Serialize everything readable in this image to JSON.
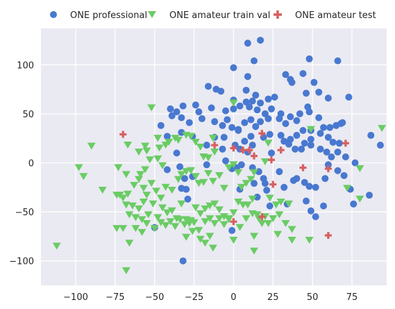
{
  "colors": {
    "plot_background": "#eaeaf2",
    "grid": "#ffffff",
    "professional": "#4878d0",
    "train_val": "#6acc64",
    "test": "#d65f5f"
  },
  "legend": {
    "position": "top, above plot",
    "items": [
      {
        "label": "ONE professional",
        "marker": "circle",
        "color": "#4878d0"
      },
      {
        "label": "ONE amateur train val",
        "marker": "triangle-down",
        "color": "#6acc64"
      },
      {
        "label": "ONE amateur test",
        "marker": "plus",
        "color": "#d65f5f"
      }
    ]
  },
  "chart_data": {
    "type": "scatter",
    "title": "",
    "xlabel": "",
    "ylabel": "",
    "xlim": [
      -122,
      97
    ],
    "ylim": [
      -125,
      137
    ],
    "grid": true,
    "x_ticks": [
      -100,
      -75,
      -50,
      -25,
      0,
      25,
      50,
      75
    ],
    "x_tick_labels": [
      "−100",
      "−75",
      "−50",
      "−25",
      "0",
      "25",
      "50",
      "75"
    ],
    "y_ticks": [
      -100,
      -50,
      0,
      50,
      100
    ],
    "y_tick_labels": [
      "−100",
      "−50",
      "0",
      "50",
      "100"
    ],
    "series": [
      {
        "name": "ONE professional",
        "marker": "circle",
        "points": [
          [
            9,
            122
          ],
          [
            17,
            125
          ],
          [
            13,
            104
          ],
          [
            48,
            106
          ],
          [
            66,
            104
          ],
          [
            0,
            97
          ],
          [
            33,
            90
          ],
          [
            36,
            85
          ],
          [
            44,
            91
          ],
          [
            9,
            88
          ],
          [
            37,
            82
          ],
          [
            51,
            82
          ],
          [
            -16,
            78
          ],
          [
            -11,
            75
          ],
          [
            -8,
            73
          ],
          [
            8,
            74
          ],
          [
            14,
            69
          ],
          [
            22,
            65
          ],
          [
            12,
            63
          ],
          [
            17,
            61
          ],
          [
            26,
            67
          ],
          [
            46,
            71
          ],
          [
            54,
            72
          ],
          [
            60,
            66
          ],
          [
            73,
            67
          ],
          [
            -40,
            55
          ],
          [
            -36,
            52
          ],
          [
            -32,
            58
          ],
          [
            -24,
            59
          ],
          [
            -22,
            52
          ],
          [
            -14,
            56
          ],
          [
            -5,
            53
          ],
          [
            0,
            55
          ],
          [
            0,
            64
          ],
          [
            4,
            58
          ],
          [
            8,
            62
          ],
          [
            10,
            57
          ],
          [
            15,
            54
          ],
          [
            20,
            50
          ],
          [
            24,
            55
          ],
          [
            30,
            50
          ],
          [
            36,
            47
          ],
          [
            42,
            50
          ],
          [
            48,
            52
          ],
          [
            47,
            57
          ],
          [
            54,
            46
          ],
          [
            61,
            36
          ],
          [
            57,
            36
          ],
          [
            -46,
            38
          ],
          [
            -39,
            48
          ],
          [
            -33,
            46
          ],
          [
            -28,
            41
          ],
          [
            -20,
            45
          ],
          [
            -12,
            42
          ],
          [
            -7,
            38
          ],
          [
            -4,
            44
          ],
          [
            -1,
            36
          ],
          [
            3,
            34
          ],
          [
            7,
            41
          ],
          [
            11,
            44
          ],
          [
            14,
            37
          ],
          [
            17,
            42
          ],
          [
            22,
            45
          ],
          [
            29,
            45
          ],
          [
            33,
            40
          ],
          [
            40,
            43
          ],
          [
            44,
            33
          ],
          [
            49,
            33
          ],
          [
            65,
            38
          ],
          [
            68,
            40
          ],
          [
            -42,
            27
          ],
          [
            -33,
            31
          ],
          [
            -26,
            27
          ],
          [
            -12,
            26
          ],
          [
            -6,
            26
          ],
          [
            3,
            33
          ],
          [
            7,
            22
          ],
          [
            11,
            27
          ],
          [
            19,
            26
          ],
          [
            23,
            29
          ],
          [
            30,
            28
          ],
          [
            36,
            24
          ],
          [
            40,
            28
          ],
          [
            45,
            20
          ],
          [
            49,
            24
          ],
          [
            55,
            30
          ],
          [
            60,
            26
          ],
          [
            63,
            21
          ],
          [
            67,
            20
          ],
          [
            69,
            41
          ],
          [
            87,
            28
          ],
          [
            -36,
            10
          ],
          [
            -17,
            18
          ],
          [
            -7,
            14
          ],
          [
            1,
            18
          ],
          [
            4,
            14
          ],
          [
            9,
            11
          ],
          [
            12,
            18
          ],
          [
            24,
            10
          ],
          [
            32,
            22
          ],
          [
            35,
            19
          ],
          [
            39,
            14
          ],
          [
            43,
            14
          ],
          [
            49,
            18
          ],
          [
            55,
            14
          ],
          [
            59,
            11
          ],
          [
            62,
            6
          ],
          [
            66,
            11
          ],
          [
            71,
            6
          ],
          [
            77,
            0
          ],
          [
            93,
            18
          ],
          [
            -34,
            -4
          ],
          [
            -42,
            -7
          ],
          [
            -31,
            -16
          ],
          [
            -26,
            -14
          ],
          [
            -17,
            -2
          ],
          [
            -5,
            2
          ],
          [
            -1,
            -6
          ],
          [
            2,
            -5
          ],
          [
            5,
            -2
          ],
          [
            12,
            -5
          ],
          [
            16,
            -9
          ],
          [
            19,
            -16
          ],
          [
            20,
            -21
          ],
          [
            21,
            -28
          ],
          [
            29,
            -9
          ],
          [
            32,
            -25
          ],
          [
            38,
            -18
          ],
          [
            40,
            -16
          ],
          [
            45,
            -20
          ],
          [
            48,
            -24
          ],
          [
            52,
            -25
          ],
          [
            58,
            -16
          ],
          [
            60,
            -2
          ],
          [
            66,
            -8
          ],
          [
            70,
            -13
          ],
          [
            74,
            -27
          ],
          [
            -30,
            -27
          ],
          [
            -33,
            -26
          ],
          [
            -29,
            -37
          ],
          [
            4,
            -27
          ],
          [
            13,
            -21
          ],
          [
            15,
            -35
          ],
          [
            23,
            -44
          ],
          [
            34,
            -42
          ],
          [
            46,
            -39
          ],
          [
            49,
            -49
          ],
          [
            52,
            -55
          ],
          [
            57,
            -44
          ],
          [
            76,
            -42
          ],
          [
            86,
            -33
          ],
          [
            -50,
            -66
          ],
          [
            -1,
            -69
          ],
          [
            -32,
            -100
          ]
        ]
      },
      {
        "name": "ONE amateur train val",
        "marker": "triangle-down",
        "points": [
          [
            -52,
            56
          ],
          [
            0,
            61
          ],
          [
            -35,
            23
          ],
          [
            -30,
            28
          ],
          [
            -13,
            25
          ],
          [
            -24,
            21
          ],
          [
            -48,
            25
          ],
          [
            -56,
            17
          ],
          [
            -47,
            15
          ],
          [
            -43,
            18
          ],
          [
            -41,
            21
          ],
          [
            -37,
            25
          ],
          [
            -27,
            27
          ],
          [
            -21,
            16
          ],
          [
            -19,
            6
          ],
          [
            -16,
            5
          ],
          [
            -12,
            11
          ],
          [
            -67,
            18
          ],
          [
            -60,
            11
          ],
          [
            -55,
            12
          ],
          [
            -53,
            3
          ],
          [
            -48,
            4
          ],
          [
            -45,
            -3
          ],
          [
            -56,
            -7
          ],
          [
            -59,
            -12
          ],
          [
            -68,
            -12
          ],
          [
            -73,
            -5
          ],
          [
            -83,
            -28
          ],
          [
            -90,
            17
          ],
          [
            -98,
            -5
          ],
          [
            -95,
            -14
          ],
          [
            -72,
            -33
          ],
          [
            -74,
            -33
          ],
          [
            -70,
            -36
          ],
          [
            -67,
            -32
          ],
          [
            -63,
            -23
          ],
          [
            -60,
            -17
          ],
          [
            -57,
            -26
          ],
          [
            -55,
            -33
          ],
          [
            -52,
            -21
          ],
          [
            -49,
            -29
          ],
          [
            -46,
            -36
          ],
          [
            -43,
            -25
          ],
          [
            -39,
            -28
          ],
          [
            -35,
            -17
          ],
          [
            -33,
            -12
          ],
          [
            -30,
            -9
          ],
          [
            -27,
            -8
          ],
          [
            -24,
            -14
          ],
          [
            -22,
            -21
          ],
          [
            -19,
            -20
          ],
          [
            -16,
            -11
          ],
          [
            -13,
            -19
          ],
          [
            -9,
            -13
          ],
          [
            -6,
            -26
          ],
          [
            -3,
            -5
          ],
          [
            0,
            -2
          ],
          [
            3,
            -10
          ],
          [
            5,
            -25
          ],
          [
            8,
            -21
          ],
          [
            11,
            -17
          ],
          [
            13,
            -10
          ],
          [
            -68,
            -43
          ],
          [
            -64,
            -44
          ],
          [
            -60,
            -47
          ],
          [
            -57,
            -40
          ],
          [
            -54,
            -53
          ],
          [
            -51,
            -42
          ],
          [
            -48,
            -56
          ],
          [
            -45,
            -46
          ],
          [
            -42,
            -51
          ],
          [
            -39,
            -49
          ],
          [
            -36,
            -57
          ],
          [
            -33,
            -42
          ],
          [
            -30,
            -58
          ],
          [
            -27,
            -59
          ],
          [
            -24,
            -46
          ],
          [
            -21,
            -52
          ],
          [
            -18,
            -47
          ],
          [
            -15,
            -44
          ],
          [
            -12,
            -42
          ],
          [
            -9,
            -48
          ],
          [
            -6,
            -55
          ],
          [
            -3,
            -58
          ],
          [
            0,
            -51
          ],
          [
            3,
            -40
          ],
          [
            6,
            -43
          ],
          [
            9,
            -43
          ],
          [
            12,
            -37
          ],
          [
            16,
            -57
          ],
          [
            20,
            -55
          ],
          [
            23,
            -36
          ],
          [
            27,
            -43
          ],
          [
            30,
            -40
          ],
          [
            35,
            -42
          ],
          [
            -66,
            -53
          ],
          [
            -62,
            -56
          ],
          [
            -58,
            -58
          ],
          [
            -55,
            -62
          ],
          [
            -50,
            -67
          ],
          [
            -46,
            -61
          ],
          [
            -43,
            -64
          ],
          [
            -40,
            -60
          ],
          [
            -37,
            -65
          ],
          [
            -34,
            -58
          ],
          [
            -31,
            -63
          ],
          [
            -28,
            -62
          ],
          [
            -25,
            -61
          ],
          [
            -22,
            -69
          ],
          [
            -18,
            -60
          ],
          [
            -15,
            -57
          ],
          [
            -12,
            -62
          ],
          [
            -9,
            -57
          ],
          [
            -6,
            -63
          ],
          [
            -3,
            -57
          ],
          [
            4,
            -66
          ],
          [
            8,
            -57
          ],
          [
            12,
            -52
          ],
          [
            15,
            -53
          ],
          [
            18,
            -62
          ],
          [
            22,
            -62
          ],
          [
            25,
            -57
          ],
          [
            29,
            -53
          ],
          [
            33,
            -62
          ],
          [
            37,
            -68
          ],
          [
            -74,
            -67
          ],
          [
            -70,
            -67
          ],
          [
            -66,
            -82
          ],
          [
            -62,
            -67
          ],
          [
            -58,
            -71
          ],
          [
            -26,
            -70
          ],
          [
            -21,
            -78
          ],
          [
            -18,
            -82
          ],
          [
            -13,
            -87
          ],
          [
            -30,
            -76
          ],
          [
            -15,
            -75
          ],
          [
            0,
            -79
          ],
          [
            13,
            -90
          ],
          [
            13,
            -75
          ],
          [
            28,
            -73
          ],
          [
            37,
            -79
          ],
          [
            48,
            -79
          ],
          [
            -112,
            -85
          ],
          [
            -68,
            -110
          ],
          [
            20,
            1
          ],
          [
            22,
            20
          ],
          [
            49,
            34
          ],
          [
            72,
            -26
          ],
          [
            80,
            -6
          ],
          [
            94,
            35
          ],
          [
            80,
            -37
          ]
        ]
      },
      {
        "name": "ONE amateur test",
        "marker": "plus",
        "points": [
          [
            -70,
            29
          ],
          [
            -12,
            18
          ],
          [
            0,
            15
          ],
          [
            6,
            13
          ],
          [
            10,
            13
          ],
          [
            13,
            7
          ],
          [
            18,
            30
          ],
          [
            24,
            3
          ],
          [
            30,
            13
          ],
          [
            44,
            -5
          ],
          [
            60,
            -6
          ],
          [
            71,
            20
          ],
          [
            0,
            -60
          ],
          [
            18,
            -55
          ],
          [
            25,
            -22
          ],
          [
            60,
            -74
          ]
        ]
      }
    ]
  }
}
